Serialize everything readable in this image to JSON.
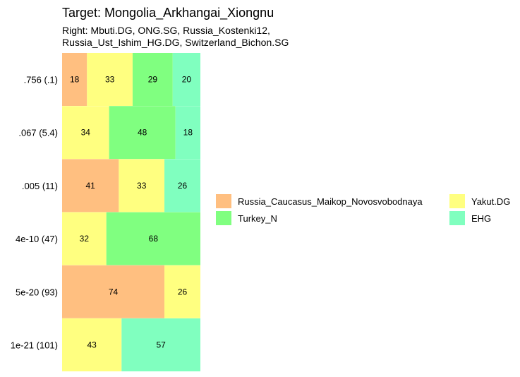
{
  "chart_data": {
    "type": "bar",
    "orientation": "horizontal-stacked",
    "title": "Target: Mongolia_Arkhangai_Xiongnu",
    "subtitle_lines": [
      "Right: Mbuti.DG, ONG.SG, Russia_Kostenki12,",
      "Russia_Ust_Ishim_HG.DG, Switzerland_Bichon.SG"
    ],
    "xlim": [
      0,
      100
    ],
    "categories": [
      ".756 (.1)",
      ".067 (5.4)",
      ".005 (11)",
      "4e-10 (47)",
      "5e-20 (93)",
      "1e-21 (101)"
    ],
    "rows": [
      {
        "label": ".756 (.1)",
        "segments": [
          {
            "series": "Russia_Caucasus_Maikop_Novosvobodnaya",
            "value": 18
          },
          {
            "series": "Yakut.DG",
            "value": 33
          },
          {
            "series": "Turkey_N",
            "value": 29
          },
          {
            "series": "EHG",
            "value": 20
          }
        ]
      },
      {
        "label": ".067 (5.4)",
        "segments": [
          {
            "series": "Yakut.DG",
            "value": 34
          },
          {
            "series": "Turkey_N",
            "value": 48
          },
          {
            "series": "EHG",
            "value": 18
          }
        ]
      },
      {
        "label": ".005 (11)",
        "segments": [
          {
            "series": "Russia_Caucasus_Maikop_Novosvobodnaya",
            "value": 41
          },
          {
            "series": "Yakut.DG",
            "value": 33
          },
          {
            "series": "EHG",
            "value": 26
          }
        ]
      },
      {
        "label": "4e-10 (47)",
        "segments": [
          {
            "series": "Yakut.DG",
            "value": 32
          },
          {
            "series": "Turkey_N",
            "value": 68
          }
        ]
      },
      {
        "label": "5e-20 (93)",
        "segments": [
          {
            "series": "Russia_Caucasus_Maikop_Novosvobodnaya",
            "value": 74
          },
          {
            "series": "Yakut.DG",
            "value": 26
          }
        ]
      },
      {
        "label": "1e-21 (101)",
        "segments": [
          {
            "series": "Yakut.DG",
            "value": 43
          },
          {
            "series": "EHG",
            "value": 57
          }
        ]
      }
    ],
    "legend": [
      {
        "name": "Russia_Caucasus_Maikop_Novosvobodnaya",
        "color": "#FFBF80"
      },
      {
        "name": "Turkey_N",
        "color": "#80FF80"
      },
      {
        "name": "Yakut.DG",
        "color": "#FFFF80"
      },
      {
        "name": "EHG",
        "color": "#80FFBF"
      }
    ],
    "legend_placement": "right",
    "grid": false
  }
}
